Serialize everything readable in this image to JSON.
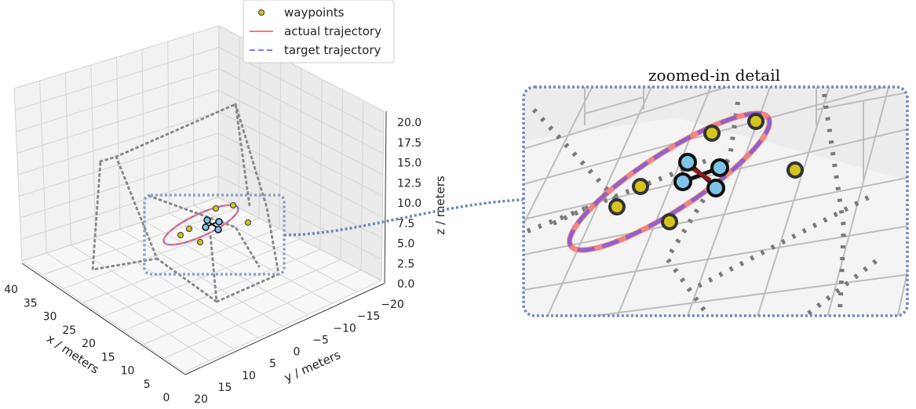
{
  "chart_data": [
    {
      "type": "scatter",
      "projection": "3d",
      "legend": {
        "placement": "top-center",
        "entries": [
          {
            "label": "waypoints",
            "marker": "circle",
            "color": "#d4c41c"
          },
          {
            "label": "actual trajectory",
            "style": "solid",
            "color": "#f47a74"
          },
          {
            "label": "target trajectory",
            "style": "dashed",
            "color": "#7b78f2"
          }
        ]
      },
      "axes": {
        "x": {
          "label": "x / meters",
          "ticks": [
            "40",
            "35",
            "30",
            "25",
            "20",
            "15",
            "10",
            "5",
            "0"
          ],
          "range": [
            0,
            40
          ]
        },
        "y": {
          "label": "y / meters",
          "ticks": [
            "20",
            "15",
            "10",
            "5",
            "0",
            "−5",
            "−10",
            "−15",
            "−20"
          ],
          "range": [
            -20,
            20
          ]
        },
        "z": {
          "label": "z / meters",
          "ticks": [
            "0.0",
            "2.5",
            "5.0",
            "7.5",
            "10.0",
            "12.5",
            "15.0",
            "17.5",
            "20.0"
          ],
          "range": [
            0,
            20
          ]
        }
      },
      "grid": true,
      "series": [
        {
          "name": "waypoints",
          "kind": "points",
          "count": 6
        },
        {
          "name": "actual trajectory",
          "kind": "closed-loop ellipse"
        },
        {
          "name": "target trajectory",
          "kind": "closed-loop ellipse"
        }
      ]
    },
    {
      "type": "scatter",
      "projection": "3d-zoom",
      "title": "zoomed-in detail",
      "note": "magnified view of the region around the quadrotor and trajectory loop"
    }
  ],
  "colors": {
    "actual": "#f47a74",
    "target": "#7b78f2",
    "waypoint": "#d4c41c",
    "rotor": "#7cc4e8",
    "frame": "#8ea2c8",
    "dotted": "#808080",
    "grid": "#d8d8d8"
  }
}
